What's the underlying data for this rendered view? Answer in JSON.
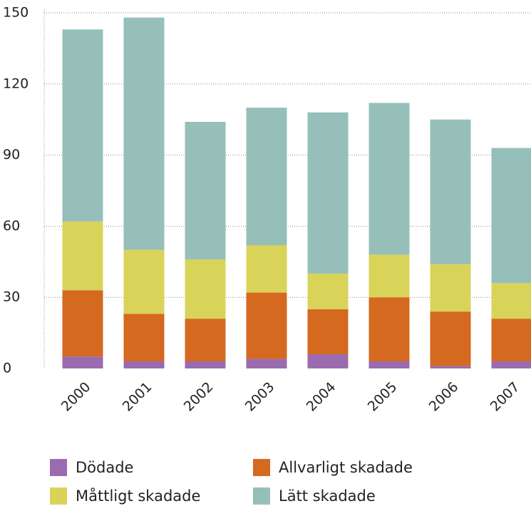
{
  "chart_data": {
    "type": "bar",
    "stacked": true,
    "categories": [
      "2000",
      "2001",
      "2002",
      "2003",
      "2004",
      "2005",
      "2006",
      "2007"
    ],
    "series": [
      {
        "name": "Dödade",
        "color": "#9b6bb0",
        "values": [
          5,
          3,
          3,
          4,
          6,
          3,
          1,
          3
        ]
      },
      {
        "name": "Allvarligt skadade",
        "color": "#d4691f",
        "values": [
          28,
          20,
          18,
          28,
          19,
          27,
          23,
          18
        ]
      },
      {
        "name": "Måttligt skadade",
        "color": "#d9d35a",
        "values": [
          29,
          27,
          25,
          20,
          15,
          18,
          20,
          15
        ]
      },
      {
        "name": "Lätt skadade",
        "color": "#96bfba",
        "values": [
          81,
          98,
          58,
          58,
          68,
          64,
          61,
          57
        ]
      }
    ],
    "ylim": [
      0,
      150
    ],
    "yticks": [
      0,
      30,
      60,
      90,
      120,
      150
    ],
    "grid": true
  }
}
